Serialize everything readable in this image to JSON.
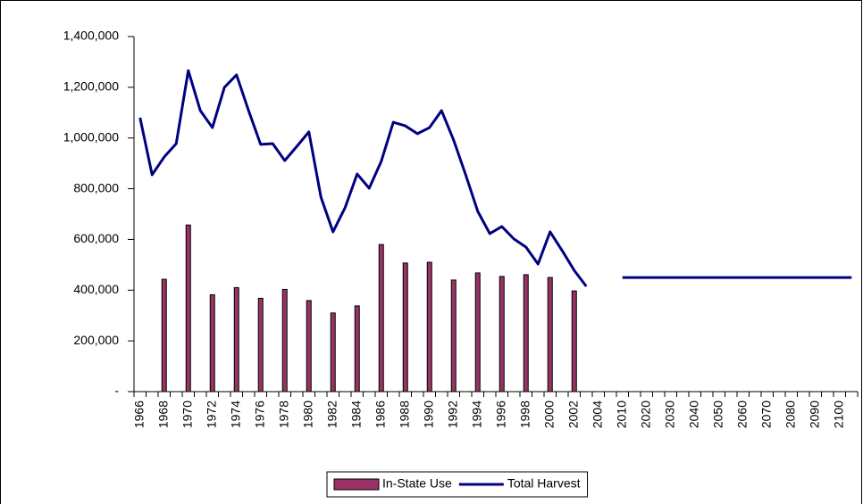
{
  "chart_data": {
    "type": "bar",
    "categories": [
      "1966",
      null,
      "1968",
      null,
      "1970",
      null,
      "1972",
      null,
      "1974",
      null,
      "1976",
      null,
      "1978",
      null,
      "1980",
      null,
      "1982",
      null,
      "1984",
      null,
      "1986",
      null,
      "1988",
      null,
      "1990",
      null,
      "1992",
      null,
      "1994",
      null,
      "1996",
      null,
      "1998",
      null,
      "2000",
      null,
      "2002",
      null,
      "2004",
      null,
      "2010",
      null,
      "2020",
      null,
      "2030",
      null,
      "2040",
      null,
      "2050",
      null,
      "2060",
      null,
      "2070",
      null,
      "2080",
      null,
      "2090",
      null,
      "2100",
      null
    ],
    "series": [
      {
        "name": "In-State Use",
        "type": "bar",
        "color": "#993366",
        "values": [
          null,
          null,
          443000,
          null,
          657000,
          null,
          382000,
          null,
          410000,
          null,
          368000,
          null,
          403000,
          null,
          359000,
          null,
          310000,
          null,
          338000,
          null,
          580000,
          null,
          507000,
          null,
          510000,
          null,
          440000,
          null,
          468000,
          null,
          454000,
          null,
          461000,
          null,
          450000,
          null,
          397000,
          null,
          null,
          null,
          null,
          null,
          null,
          null,
          null,
          null,
          null,
          null,
          null,
          null,
          null,
          null,
          null,
          null,
          null,
          null,
          null,
          null,
          null,
          null
        ]
      },
      {
        "name": "Total Harvest",
        "type": "line",
        "color": "#000080",
        "values": [
          1080000,
          855000,
          925000,
          978000,
          1266000,
          1108000,
          1041000,
          1200000,
          1249000,
          1108000,
          975000,
          978000,
          911000,
          967000,
          1024000,
          767000,
          630000,
          725000,
          858000,
          802000,
          908000,
          1062000,
          1048000,
          1017000,
          1041000,
          1108000,
          992000,
          855000,
          711000,
          623000,
          651000,
          602000,
          570000,
          503000,
          630000,
          556000,
          478000,
          415000,
          null,
          null,
          450000,
          450000,
          450000,
          450000,
          450000,
          450000,
          450000,
          450000,
          450000,
          450000,
          450000,
          450000,
          450000,
          450000,
          450000,
          450000,
          450000,
          450000,
          450000,
          450000
        ]
      }
    ],
    "ylim": [
      0,
      1400000
    ],
    "yticks": [
      {
        "value": 0,
        "label": "-"
      },
      {
        "value": 200000,
        "label": "200,000"
      },
      {
        "value": 400000,
        "label": "400,000"
      },
      {
        "value": 600000,
        "label": "600,000"
      },
      {
        "value": 800000,
        "label": "800,000"
      },
      {
        "value": 1000000,
        "label": "1,000,000"
      },
      {
        "value": 1200000,
        "label": "1,200,000"
      },
      {
        "value": 1400000,
        "label": "1,400,000"
      }
    ],
    "legend": "bottom"
  }
}
